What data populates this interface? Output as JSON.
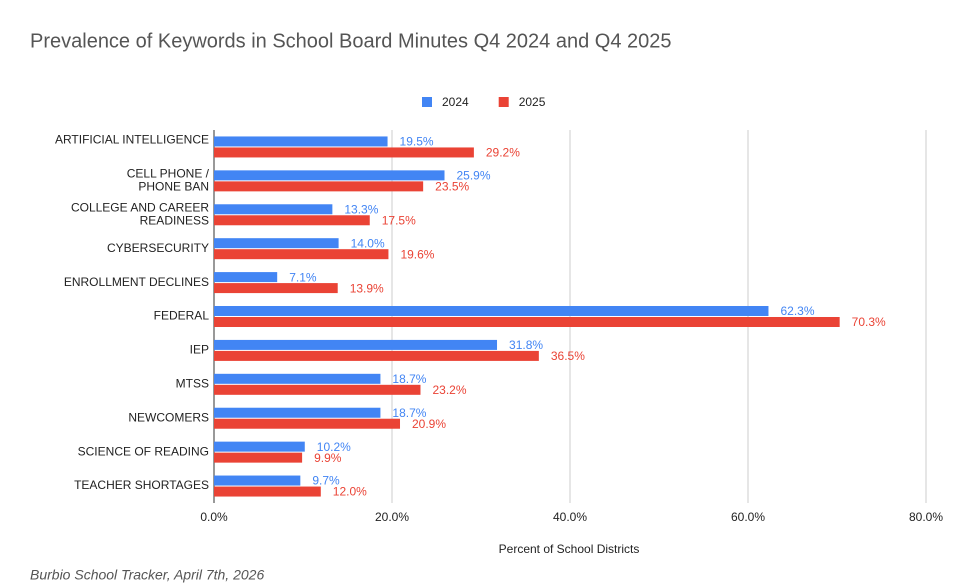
{
  "chart_data": {
    "type": "bar",
    "orientation": "horizontal",
    "title": "Prevalence of Keywords in School Board Minutes Q4 2024 and Q4 2025",
    "x_label": "Percent of School Districts",
    "source": "Burbio School Tracker, April 7th, 2026",
    "categories": [
      "ARTIFICIAL INTELLIGENCE",
      "CELL PHONE / PHONE BAN",
      "COLLEGE AND CAREER READINESS",
      "CYBERSECURITY",
      "ENROLLMENT DECLINES",
      "FEDERAL",
      "IEP",
      "MTSS",
      "NEWCOMERS",
      "SCIENCE OF READING",
      "TEACHER SHORTAGES"
    ],
    "series": [
      {
        "name": "2024",
        "color": "#4285f4",
        "values": [
          19.5,
          25.9,
          13.3,
          14.0,
          7.1,
          62.3,
          31.8,
          18.7,
          18.7,
          10.2,
          9.7
        ],
        "value_labels": [
          "19.5%",
          "25.9%",
          "13.3%",
          "14.0%",
          "7.1%",
          "62.3%",
          "31.8%",
          "18.7%",
          "18.7%",
          "10.2%",
          "9.7%"
        ]
      },
      {
        "name": "2025",
        "color": "#ea4335",
        "values": [
          29.2,
          23.5,
          17.5,
          19.6,
          13.9,
          70.3,
          36.5,
          23.2,
          20.9,
          9.9,
          12.0
        ],
        "value_labels": [
          "29.2%",
          "23.5%",
          "17.5%",
          "19.6%",
          "13.9%",
          "70.3%",
          "36.5%",
          "23.2%",
          "20.9%",
          "9.9%",
          "12.0%"
        ]
      }
    ],
    "xlim": [
      0,
      80
    ],
    "xticks": [
      {
        "value": 0,
        "label": "0.0%"
      },
      {
        "value": 20,
        "label": "20.0%"
      },
      {
        "value": 40,
        "label": "40.0%"
      },
      {
        "value": 60,
        "label": "60.0%"
      },
      {
        "value": 80,
        "label": "80.0%"
      }
    ],
    "grid": true,
    "legend": "top"
  }
}
